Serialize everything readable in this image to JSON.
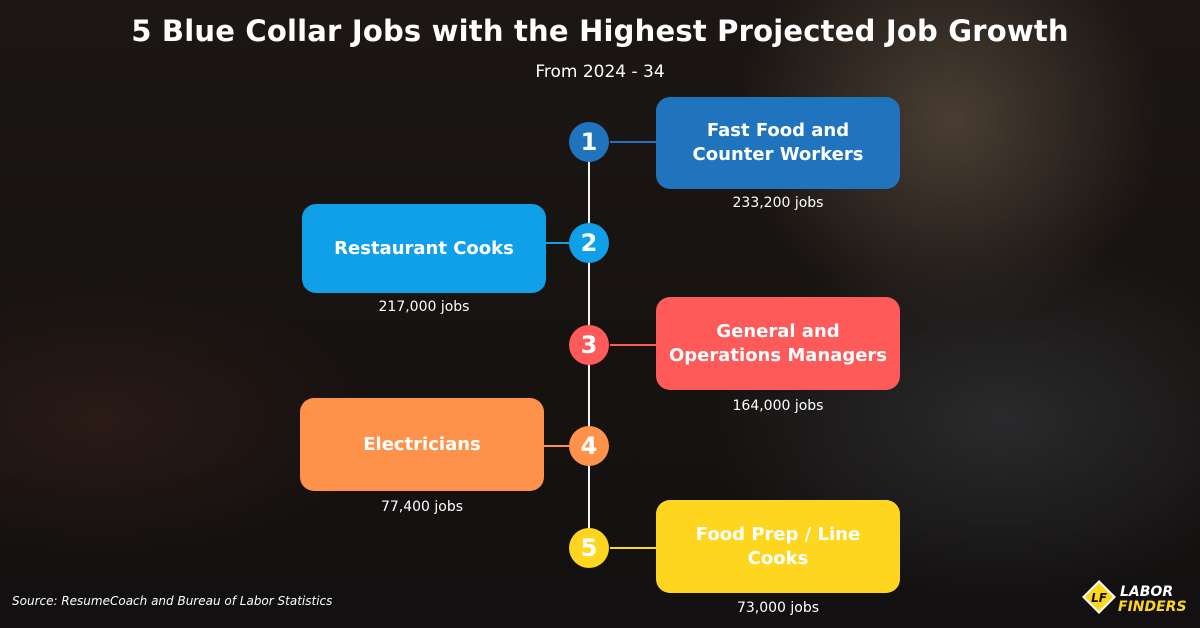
{
  "title": "5 Blue Collar Jobs with the Highest Projected Job Growth",
  "subtitle": "From 2024 - 34",
  "items": [
    {
      "rank": "1",
      "job": "Fast Food and Counter Workers",
      "growth": "233,200 jobs",
      "color": "#1f74bd"
    },
    {
      "rank": "2",
      "job": "Restaurant Cooks",
      "growth": "217,000 jobs",
      "color": "#10a0ea"
    },
    {
      "rank": "3",
      "job": "General and Operations Managers",
      "growth": "164,000 jobs",
      "color": "#ff5a5a"
    },
    {
      "rank": "4",
      "job": "Electricians",
      "growth": "77,400 jobs",
      "color": "#ff924a"
    },
    {
      "rank": "5",
      "job": "Food Prep / Line Cooks",
      "growth": "73,000 jobs",
      "color": "#ffd61f"
    }
  ],
  "source": "Source: ResumeCoach and Bureau of Labor Statistics",
  "logo": {
    "line1": "LABOR",
    "line2": "FINDERS"
  }
}
